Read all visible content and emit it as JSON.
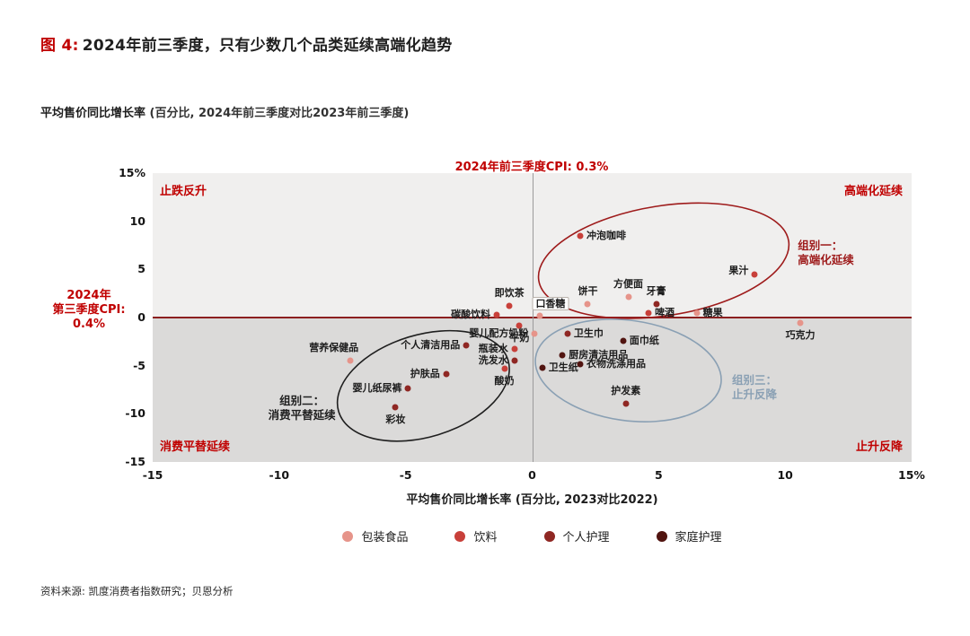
{
  "header": {
    "figure_label": "图 4:",
    "title": "2024年前三季度，只有少数几个品类延续高端化趋势",
    "subtitle": "平均售价同比增长率",
    "subtitle_note": "(百分比, 2024年前三季度对比2023年前三季度)"
  },
  "footer": {
    "source": "资料来源: 凯度消费者指数研究；贝恩分析"
  },
  "chart_data": {
    "type": "scatter",
    "xlim": [
      -15,
      15
    ],
    "ylim": [
      -15,
      15
    ],
    "grid": false,
    "legend_position": "bottom",
    "x_axis_title": "平均售价同比增长率 (百分比, 2023对比2022)",
    "top_annotation": "2024年前三季度CPI:  0.3%",
    "left_annotation_lines": [
      "2024年",
      "第三季度CPI:",
      "0.4%"
    ],
    "quadrant_labels": {
      "top_left": "止跌反升",
      "top_right": "高端化延续",
      "bottom_left": "消费平替延续",
      "bottom_right": "止升反降"
    },
    "x_ticks": [
      {
        "v": -15,
        "label": "-15"
      },
      {
        "v": -10,
        "label": "-10"
      },
      {
        "v": -5,
        "label": "-5"
      },
      {
        "v": 0,
        "label": "0"
      },
      {
        "v": 5,
        "label": "5"
      },
      {
        "v": 10,
        "label": "10"
      },
      {
        "v": 15,
        "label": "15%"
      }
    ],
    "y_ticks": [
      {
        "v": 15,
        "label": "15%"
      },
      {
        "v": 10,
        "label": "10"
      },
      {
        "v": 5,
        "label": "5"
      },
      {
        "v": 0,
        "label": "0"
      },
      {
        "v": -5,
        "label": "-5"
      },
      {
        "v": -10,
        "label": "-10"
      },
      {
        "v": -15,
        "label": "-15"
      }
    ],
    "colors": {
      "accent_red": "#c00000",
      "zero_line_horizontal": "#8c1f1f",
      "zero_line_vertical": "#9b9b9b",
      "background_top_half": "#f0efee",
      "background_bottom_half": "#dbdad9"
    },
    "categories": [
      {
        "name": "包装食品",
        "color": "#e6948a"
      },
      {
        "name": "饮料",
        "color": "#c8403a"
      },
      {
        "name": "个人护理",
        "color": "#8f2723"
      },
      {
        "name": "家庭护理",
        "color": "#511410"
      }
    ],
    "groups": [
      {
        "id": "group-1",
        "lines": [
          "组别一：",
          "高端化延续"
        ],
        "color": "#9e1b1b",
        "align": "left",
        "label_at": {
          "x": 10.5,
          "y": 8.2
        },
        "ellipse": {
          "cx": 5.2,
          "cy": 5.9,
          "rx": 5.0,
          "ry": 5.7,
          "rot": -9
        }
      },
      {
        "id": "group-2",
        "lines": [
          "组别二：",
          "消费平替延续"
        ],
        "color": "#1f1f1f",
        "align": "center",
        "label_at": {
          "x": -9.1,
          "y": -7.9
        },
        "ellipse": {
          "cx": -4.3,
          "cy": -7.1,
          "rx": 3.5,
          "ry": 5.3,
          "rot": -17
        }
      },
      {
        "id": "group-3",
        "lines": [
          "组别三：",
          "止升反降"
        ],
        "color": "#8aa0b4",
        "align": "left",
        "label_at": {
          "x": 7.9,
          "y": -5.8
        },
        "ellipse": {
          "cx": 3.8,
          "cy": -5.5,
          "rx": 3.7,
          "ry": 5.2,
          "rot": 8
        }
      }
    ],
    "points": [
      {
        "label": "冲泡咖啡",
        "x": 1.9,
        "y": 8.5,
        "category": "饮料",
        "label_pos": "right"
      },
      {
        "label": "果汁",
        "x": 8.8,
        "y": 4.5,
        "category": "饮料",
        "label_pos": "left",
        "dy": -4
      },
      {
        "label": "方便面",
        "x": 3.8,
        "y": 2.1,
        "category": "包装食品",
        "label_pos": "top"
      },
      {
        "label": "饼干",
        "x": 2.2,
        "y": 1.4,
        "category": "包装食品",
        "label_pos": "top"
      },
      {
        "label": "牙膏",
        "x": 4.9,
        "y": 1.4,
        "category": "个人护理",
        "label_pos": "top"
      },
      {
        "label": "啤酒",
        "x": 4.6,
        "y": 0.5,
        "category": "饮料",
        "label_pos": "right"
      },
      {
        "label": "糖果",
        "x": 6.5,
        "y": 0.5,
        "category": "包装食品",
        "label_pos": "right"
      },
      {
        "label": "即饮茶",
        "x": -0.9,
        "y": 1.2,
        "category": "饮料",
        "label_pos": "top"
      },
      {
        "label": "口香糖",
        "x": 0.3,
        "y": 0.2,
        "category": "包装食品",
        "label_pos": "top",
        "dx": 12,
        "boxed": true
      },
      {
        "label": "碳酸饮料",
        "x": -1.4,
        "y": 0.3,
        "category": "饮料",
        "label_pos": "left"
      },
      {
        "label": "巧克力",
        "x": 10.6,
        "y": -0.6,
        "category": "包装食品",
        "label_pos": "bottom"
      },
      {
        "label": "牛奶",
        "x": -0.5,
        "y": -0.8,
        "category": "饮料",
        "label_pos": "bottom"
      },
      {
        "label": "婴儿配方奶粉",
        "x": 0.1,
        "y": -1.7,
        "category": "包装食品",
        "label_pos": "left"
      },
      {
        "label": "卫生巾",
        "x": 1.4,
        "y": -1.7,
        "category": "个人护理",
        "label_pos": "right"
      },
      {
        "label": "面巾纸",
        "x": 3.6,
        "y": -2.4,
        "category": "家庭护理",
        "label_pos": "right"
      },
      {
        "label": "个人清洁用品",
        "x": -2.6,
        "y": -2.9,
        "category": "个人护理",
        "label_pos": "left"
      },
      {
        "label": "瓶装水",
        "x": -0.7,
        "y": -3.3,
        "category": "饮料",
        "label_pos": "left"
      },
      {
        "label": "厨房清洁用品",
        "x": 1.2,
        "y": -3.9,
        "category": "家庭护理",
        "label_pos": "right"
      },
      {
        "label": "洗发水",
        "x": -0.7,
        "y": -4.5,
        "category": "个人护理",
        "label_pos": "left"
      },
      {
        "label": "衣物洗涤用品",
        "x": 1.9,
        "y": -4.8,
        "category": "家庭护理",
        "label_pos": "right"
      },
      {
        "label": "卫生纸",
        "x": 0.4,
        "y": -5.2,
        "category": "家庭护理",
        "label_pos": "right"
      },
      {
        "label": "营养保健品",
        "x": -7.2,
        "y": -4.5,
        "category": "包装食品",
        "label_pos": "top",
        "dx": -18
      },
      {
        "label": "酸奶",
        "x": -1.1,
        "y": -5.3,
        "category": "饮料",
        "label_pos": "bottom"
      },
      {
        "label": "护肤品",
        "x": -3.4,
        "y": -5.9,
        "category": "个人护理",
        "label_pos": "left"
      },
      {
        "label": "婴儿纸尿裤",
        "x": -4.9,
        "y": -7.4,
        "category": "个人护理",
        "label_pos": "left"
      },
      {
        "label": "护发素",
        "x": 3.7,
        "y": -8.9,
        "category": "个人护理",
        "label_pos": "top"
      },
      {
        "label": "彩妆",
        "x": -5.4,
        "y": -9.3,
        "category": "个人护理",
        "label_pos": "bottom"
      }
    ]
  }
}
